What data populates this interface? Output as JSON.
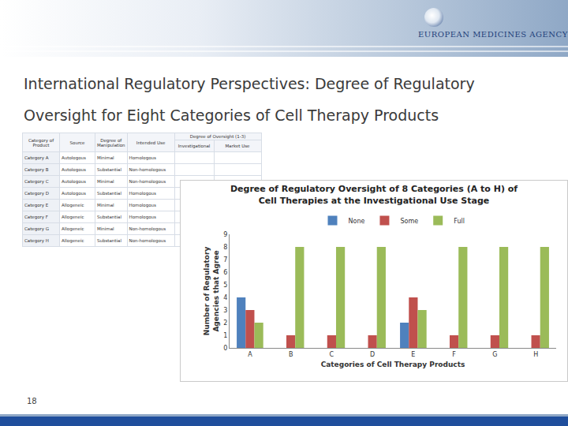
{
  "slide": {
    "title_lines": [
      "International Regulatory Perspectives: Degree of Regulatory",
      "Oversight for Eight Categories of Cell Therapy Products"
    ],
    "logo": "EUROPEAN MEDICINES AGENCY",
    "page_number": "18"
  },
  "table": {
    "header": [
      "Category of Product",
      "Source",
      "Degree of Manipulation",
      "Intended Use"
    ],
    "group_header": "Degree of Oversight (1-3)",
    "sub_header": [
      "Investigational",
      "Market Use"
    ],
    "rows": [
      [
        "Category A",
        "Autologous",
        "Minimal",
        "Homologous"
      ],
      [
        "Category B",
        "Autologous",
        "Substantial",
        "Non-homologous"
      ],
      [
        "Category C",
        "Autologous",
        "Minimal",
        "Non-homologous"
      ],
      [
        "Category D",
        "Autologous",
        "Substantial",
        "Homologous"
      ],
      [
        "Category E",
        "Allogeneic",
        "Minimal",
        "Homologous"
      ],
      [
        "Category F",
        "Allogeneic",
        "Substantial",
        "Homologous"
      ],
      [
        "Category G",
        "Allogeneic",
        "Minimal",
        "Non-homologous"
      ],
      [
        "Category H",
        "Allogeneic",
        "Substantial",
        "Non-homologous"
      ]
    ]
  },
  "chart_data": {
    "type": "bar",
    "title": "Degree of Regulatory Oversight of 8 Categories (A to H) of Cell Therapies at the Investigational Use Stage",
    "x_label": "Categories of Cell Therapy Products",
    "y_label": "Number of Regulatory Agencies that Agree",
    "categories": [
      "A",
      "B",
      "C",
      "D",
      "E",
      "F",
      "G",
      "H"
    ],
    "series": [
      {
        "name": "None",
        "color": "#4f81bd",
        "values": [
          4,
          0,
          0,
          0,
          2,
          0,
          0,
          0
        ]
      },
      {
        "name": "Some",
        "color": "#c0504d",
        "values": [
          3,
          1,
          1,
          1,
          4,
          1,
          1,
          1
        ]
      },
      {
        "name": "Full",
        "color": "#9bbb59",
        "values": [
          2,
          8,
          8,
          8,
          3,
          8,
          8,
          8
        ]
      }
    ],
    "ylim": [
      0,
      9
    ],
    "yticks": [
      0,
      1,
      2,
      3,
      4,
      5,
      6,
      7,
      8,
      9
    ],
    "grid": false,
    "legend": "top"
  }
}
